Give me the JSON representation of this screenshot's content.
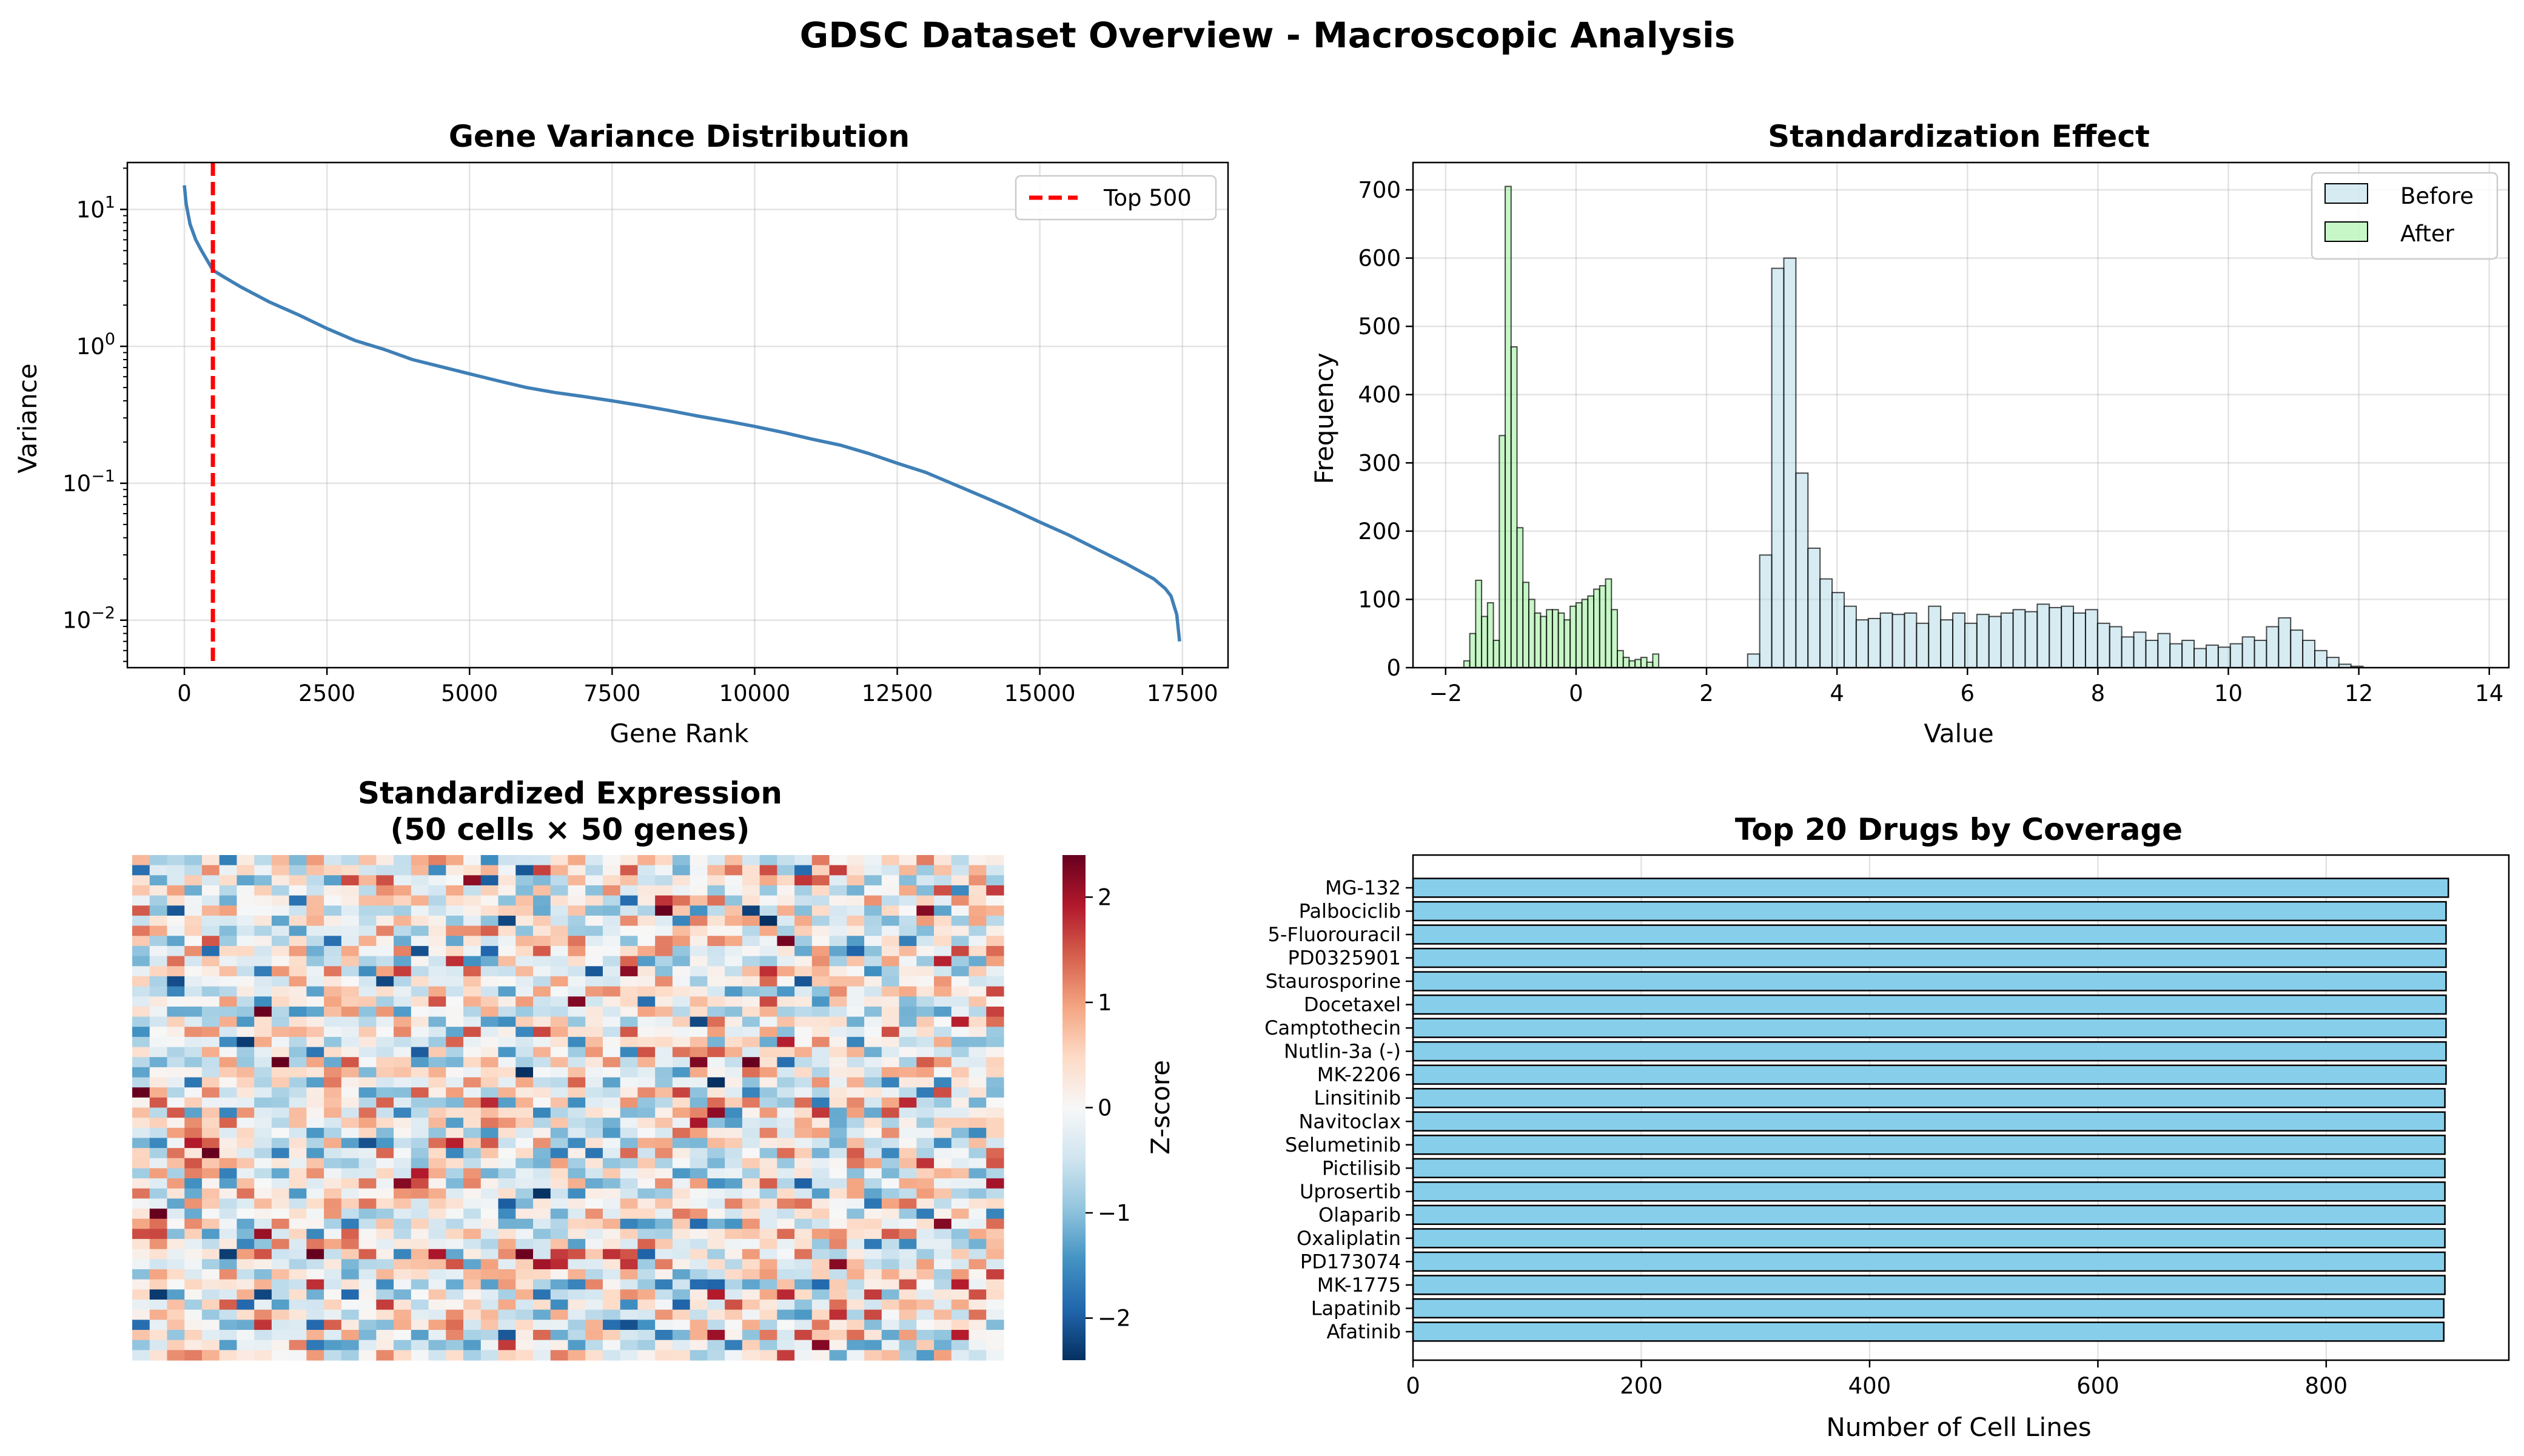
{
  "figure": {
    "suptitle": "GDSC Dataset Overview - Macroscopic Analysis"
  },
  "chart_data": [
    {
      "id": "variance",
      "type": "line",
      "title": "Gene Variance Distribution",
      "xlabel": "Gene Rank",
      "ylabel": "Variance",
      "yscale": "log",
      "xlim": [
        -1000,
        18300
      ],
      "ylim": [
        0.0045,
        22
      ],
      "xticks": [
        0,
        2500,
        5000,
        7500,
        10000,
        12500,
        15000,
        17500
      ],
      "xtick_labels": [
        "0",
        "2500",
        "5000",
        "7500",
        "10000",
        "12500",
        "15000",
        "17500"
      ],
      "ytick_exponents": [
        -2,
        -1,
        0,
        1
      ],
      "grid": true,
      "series": [
        {
          "name": "variance",
          "color": "#3f7fb6",
          "points": [
            [
              0,
              15
            ],
            [
              30,
              11
            ],
            [
              100,
              7.8
            ],
            [
              200,
              6.0
            ],
            [
              300,
              5.0
            ],
            [
              500,
              3.6
            ],
            [
              700,
              3.2
            ],
            [
              1000,
              2.7
            ],
            [
              1500,
              2.1
            ],
            [
              2000,
              1.7
            ],
            [
              2500,
              1.35
            ],
            [
              3000,
              1.1
            ],
            [
              3500,
              0.95
            ],
            [
              4000,
              0.8
            ],
            [
              4500,
              0.71
            ],
            [
              5000,
              0.63
            ],
            [
              5500,
              0.56
            ],
            [
              6000,
              0.5
            ],
            [
              6500,
              0.46
            ],
            [
              7000,
              0.43
            ],
            [
              7500,
              0.4
            ],
            [
              8000,
              0.37
            ],
            [
              8500,
              0.34
            ],
            [
              9000,
              0.31
            ],
            [
              9500,
              0.285
            ],
            [
              10000,
              0.26
            ],
            [
              10500,
              0.235
            ],
            [
              11000,
              0.21
            ],
            [
              11500,
              0.19
            ],
            [
              12000,
              0.165
            ],
            [
              12500,
              0.14
            ],
            [
              13000,
              0.12
            ],
            [
              13500,
              0.098
            ],
            [
              14000,
              0.08
            ],
            [
              14500,
              0.065
            ],
            [
              15000,
              0.052
            ],
            [
              15500,
              0.042
            ],
            [
              16000,
              0.033
            ],
            [
              16500,
              0.026
            ],
            [
              17000,
              0.02
            ],
            [
              17200,
              0.017
            ],
            [
              17300,
              0.015
            ],
            [
              17400,
              0.011
            ],
            [
              17450,
              0.007
            ]
          ]
        }
      ],
      "vline": {
        "x": 500,
        "label": "Top 500",
        "color": "#ff0000"
      },
      "legend": {
        "position": "upper right",
        "entries": [
          "Top 500"
        ]
      }
    },
    {
      "id": "standardization",
      "type": "histogram",
      "title": "Standardization Effect",
      "xlabel": "Value",
      "ylabel": "Frequency",
      "xlim": [
        -2.5,
        14.3
      ],
      "ylim": [
        0,
        740
      ],
      "xticks": [
        -2,
        0,
        2,
        4,
        6,
        8,
        10,
        12,
        14
      ],
      "xtick_labels": [
        "−2",
        "0",
        "2",
        "4",
        "6",
        "8",
        "10",
        "12",
        "14"
      ],
      "yticks": [
        0,
        100,
        200,
        300,
        400,
        500,
        600,
        700
      ],
      "grid": true,
      "series": [
        {
          "name": "Before",
          "color": "#add8e6",
          "bin_start": 2.63,
          "bin_width": 0.185,
          "counts": [
            20,
            165,
            585,
            600,
            285,
            175,
            130,
            110,
            90,
            70,
            72,
            80,
            78,
            80,
            65,
            90,
            70,
            80,
            65,
            78,
            75,
            80,
            85,
            82,
            93,
            88,
            90,
            80,
            85,
            65,
            60,
            45,
            52,
            40,
            50,
            35,
            40,
            28,
            33,
            30,
            35,
            45,
            40,
            60,
            73,
            55,
            40,
            25,
            15,
            5,
            2
          ]
        },
        {
          "name": "After",
          "color": "#90ee90",
          "bin_start": -1.72,
          "bin_width": 0.0905,
          "counts": [
            10,
            50,
            128,
            75,
            95,
            40,
            340,
            705,
            470,
            205,
            125,
            100,
            80,
            75,
            85,
            85,
            80,
            70,
            90,
            95,
            100,
            105,
            115,
            120,
            130,
            85,
            25,
            15,
            10,
            12,
            15,
            8,
            20
          ]
        }
      ],
      "legend": {
        "position": "upper right",
        "entries": [
          "Before",
          "After"
        ]
      }
    },
    {
      "id": "heatmap",
      "type": "heatmap",
      "title_lines": [
        "Standardized Expression",
        "(50 cells × 50 genes)"
      ],
      "rows": 50,
      "cols": 50,
      "vmin": -2.4,
      "vmax": 2.4,
      "colormap": "RdBu_r",
      "colorbar": {
        "label": "Z-score",
        "ticks": [
          -2,
          -1,
          0,
          1,
          2
        ],
        "tick_labels": [
          "−2",
          "−1",
          "0",
          "1",
          "2"
        ]
      }
    },
    {
      "id": "drugs",
      "type": "barh",
      "title": "Top 20 Drugs by Coverage",
      "xlabel": "Number of Cell Lines",
      "xlim": [
        0,
        960
      ],
      "xticks": [
        0,
        200,
        400,
        600,
        800
      ],
      "xtick_labels": [
        "0",
        "200",
        "400",
        "600",
        "800"
      ],
      "bar_color": "#87ceeb",
      "grid": true,
      "categories": [
        "MG-132",
        "Palbociclib",
        "5-Fluorouracil",
        "PD0325901",
        "Staurosporine",
        "Docetaxel",
        "Camptothecin",
        "Nutlin-3a (-)",
        "MK-2206",
        "Linsitinib",
        "Navitoclax",
        "Selumetinib",
        "Pictilisib",
        "Uprosertib",
        "Olaparib",
        "Oxaliplatin",
        "PD173074",
        "MK-1775",
        "Lapatinib",
        "Afatinib"
      ],
      "values": [
        907,
        905,
        905,
        905,
        905,
        905,
        905,
        905,
        905,
        904,
        904,
        904,
        904,
        904,
        904,
        904,
        904,
        904,
        903,
        903
      ]
    }
  ]
}
